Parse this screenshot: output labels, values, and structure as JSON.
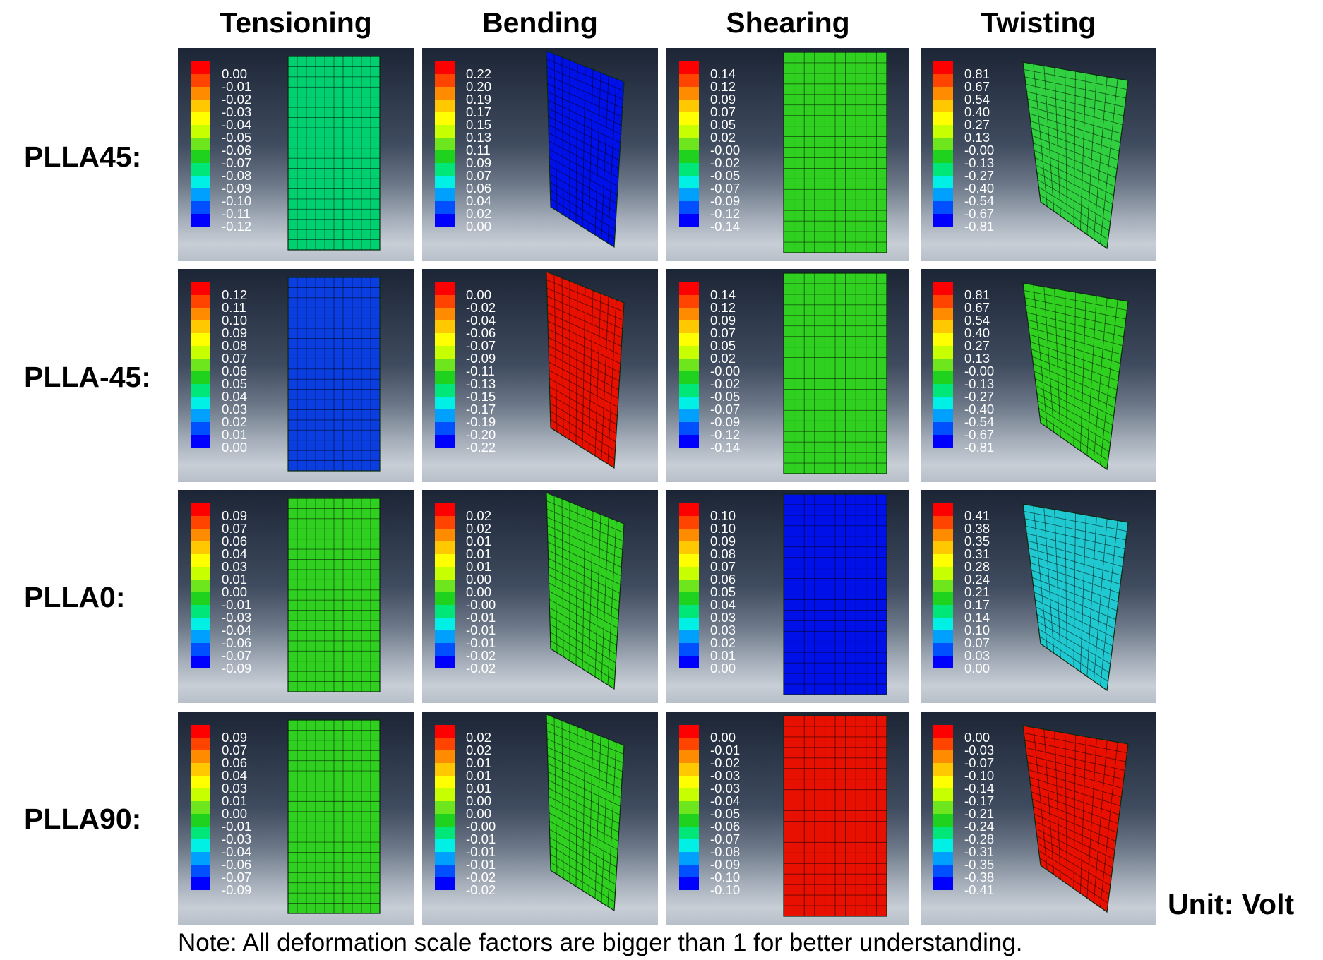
{
  "columns": [
    "Tensioning",
    "Bending",
    "Shearing",
    "Twisting"
  ],
  "rows": [
    {
      "label": "PLLA45:",
      "panels": [
        {
          "legend": [
            "0.00",
            "-0.01",
            "-0.02",
            "-0.03",
            "-0.04",
            "-0.05",
            "-0.06",
            "-0.07",
            "-0.08",
            "-0.09",
            "-0.10",
            "-0.11",
            "-0.12"
          ],
          "fill": "#00d070"
        },
        {
          "legend": [
            "0.22",
            "0.20",
            "0.19",
            "0.17",
            "0.15",
            "0.13",
            "0.11",
            "0.09",
            "0.07",
            "0.06",
            "0.04",
            "0.02",
            "0.00"
          ],
          "fill": "#0010e8"
        },
        {
          "legend": [
            "0.14",
            "0.12",
            "0.09",
            "0.07",
            "0.05",
            "0.02",
            "-0.00",
            "-0.02",
            "-0.05",
            "-0.07",
            "-0.09",
            "-0.12",
            "-0.14"
          ],
          "fill": "#30d020"
        },
        {
          "legend": [
            "0.81",
            "0.67",
            "0.54",
            "0.40",
            "0.27",
            "0.13",
            "-0.00",
            "-0.13",
            "-0.27",
            "-0.40",
            "-0.54",
            "-0.67",
            "-0.81"
          ],
          "fill": "#30d040"
        }
      ]
    },
    {
      "label": "PLLA-45:",
      "panels": [
        {
          "legend": [
            "0.12",
            "0.11",
            "0.10",
            "0.09",
            "0.08",
            "0.07",
            "0.06",
            "0.05",
            "0.04",
            "0.03",
            "0.02",
            "0.01",
            "0.00"
          ],
          "fill": "#0a3ee0"
        },
        {
          "legend": [
            "0.00",
            "-0.02",
            "-0.04",
            "-0.06",
            "-0.07",
            "-0.09",
            "-0.11",
            "-0.13",
            "-0.15",
            "-0.17",
            "-0.19",
            "-0.20",
            "-0.22"
          ],
          "fill": "#e81000"
        },
        {
          "legend": [
            "0.14",
            "0.12",
            "0.09",
            "0.07",
            "0.05",
            "0.02",
            "-0.00",
            "-0.02",
            "-0.05",
            "-0.07",
            "-0.09",
            "-0.12",
            "-0.14"
          ],
          "fill": "#30d020"
        },
        {
          "legend": [
            "0.81",
            "0.67",
            "0.54",
            "0.40",
            "0.27",
            "0.13",
            "-0.00",
            "-0.13",
            "-0.27",
            "-0.40",
            "-0.54",
            "-0.67",
            "-0.81"
          ],
          "fill": "#30d020"
        }
      ]
    },
    {
      "label": "PLLA0:",
      "panels": [
        {
          "legend": [
            "0.09",
            "0.07",
            "0.06",
            "0.04",
            "0.03",
            "0.01",
            "0.00",
            "-0.01",
            "-0.03",
            "-0.04",
            "-0.06",
            "-0.07",
            "-0.09"
          ],
          "fill": "#30d020"
        },
        {
          "legend": [
            "0.02",
            "0.02",
            "0.01",
            "0.01",
            "0.01",
            "0.00",
            "0.00",
            "-0.00",
            "-0.01",
            "-0.01",
            "-0.01",
            "-0.02",
            "-0.02"
          ],
          "fill": "#30d020"
        },
        {
          "legend": [
            "0.10",
            "0.10",
            "0.09",
            "0.08",
            "0.07",
            "0.06",
            "0.05",
            "0.04",
            "0.03",
            "0.03",
            "0.02",
            "0.01",
            "0.00"
          ],
          "fill": "#0010e8"
        },
        {
          "legend": [
            "0.41",
            "0.38",
            "0.35",
            "0.31",
            "0.28",
            "0.24",
            "0.21",
            "0.17",
            "0.14",
            "0.10",
            "0.07",
            "0.03",
            "0.00"
          ],
          "fill": "#20c8d0"
        }
      ]
    },
    {
      "label": "PLLA90:",
      "panels": [
        {
          "legend": [
            "0.09",
            "0.07",
            "0.06",
            "0.04",
            "0.03",
            "0.01",
            "0.00",
            "-0.01",
            "-0.03",
            "-0.04",
            "-0.06",
            "-0.07",
            "-0.09"
          ],
          "fill": "#30d020"
        },
        {
          "legend": [
            "0.02",
            "0.02",
            "0.01",
            "0.01",
            "0.01",
            "0.00",
            "0.00",
            "-0.00",
            "-0.01",
            "-0.01",
            "-0.01",
            "-0.02",
            "-0.02"
          ],
          "fill": "#30d020"
        },
        {
          "legend": [
            "0.00",
            "-0.01",
            "-0.02",
            "-0.03",
            "-0.03",
            "-0.04",
            "-0.05",
            "-0.06",
            "-0.07",
            "-0.08",
            "-0.09",
            "-0.10",
            "-0.10"
          ],
          "fill": "#e81000"
        },
        {
          "legend": [
            "0.00",
            "-0.03",
            "-0.07",
            "-0.10",
            "-0.14",
            "-0.17",
            "-0.21",
            "-0.24",
            "-0.28",
            "-0.31",
            "-0.35",
            "-0.38",
            "-0.41"
          ],
          "fill": "#e81000"
        }
      ]
    }
  ],
  "legend_colors": [
    "#ff0000",
    "#ff4400",
    "#ff8c00",
    "#ffc800",
    "#ffff00",
    "#c8ff00",
    "#6ee61e",
    "#1ed21e",
    "#00e678",
    "#00f0e6",
    "#00a0ff",
    "#0050ff",
    "#0000ff"
  ],
  "unit": "Unit: Volt",
  "note": "Note: All deformation scale factors are bigger than 1 for better understanding."
}
